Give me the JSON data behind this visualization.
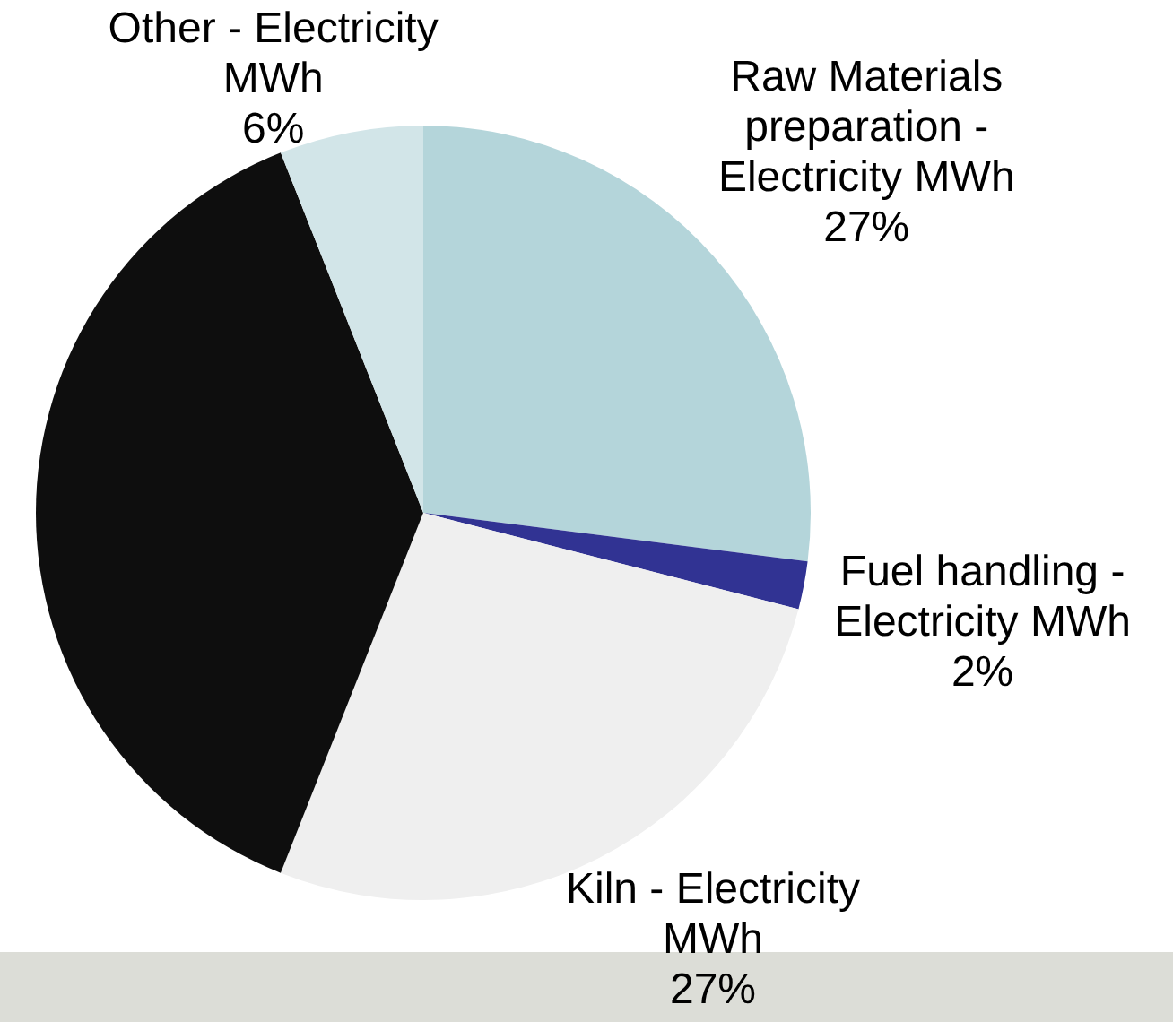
{
  "chart_data": {
    "type": "pie",
    "categories": [
      "Raw Materials preparation - Electricity MWh",
      "Fuel handling - Electricity MWh",
      "Kiln - Electricity MWh",
      null,
      "Other - Electricity MWh"
    ],
    "values": [
      27,
      2,
      27,
      38,
      6
    ],
    "colors": [
      "#b4d5da",
      "#313393",
      "#efefef",
      "#0e0e0e",
      "#d2e5e8"
    ],
    "value_labels": [
      "27%",
      "2%",
      "27%",
      null,
      "6%"
    ],
    "legend": false
  }
}
